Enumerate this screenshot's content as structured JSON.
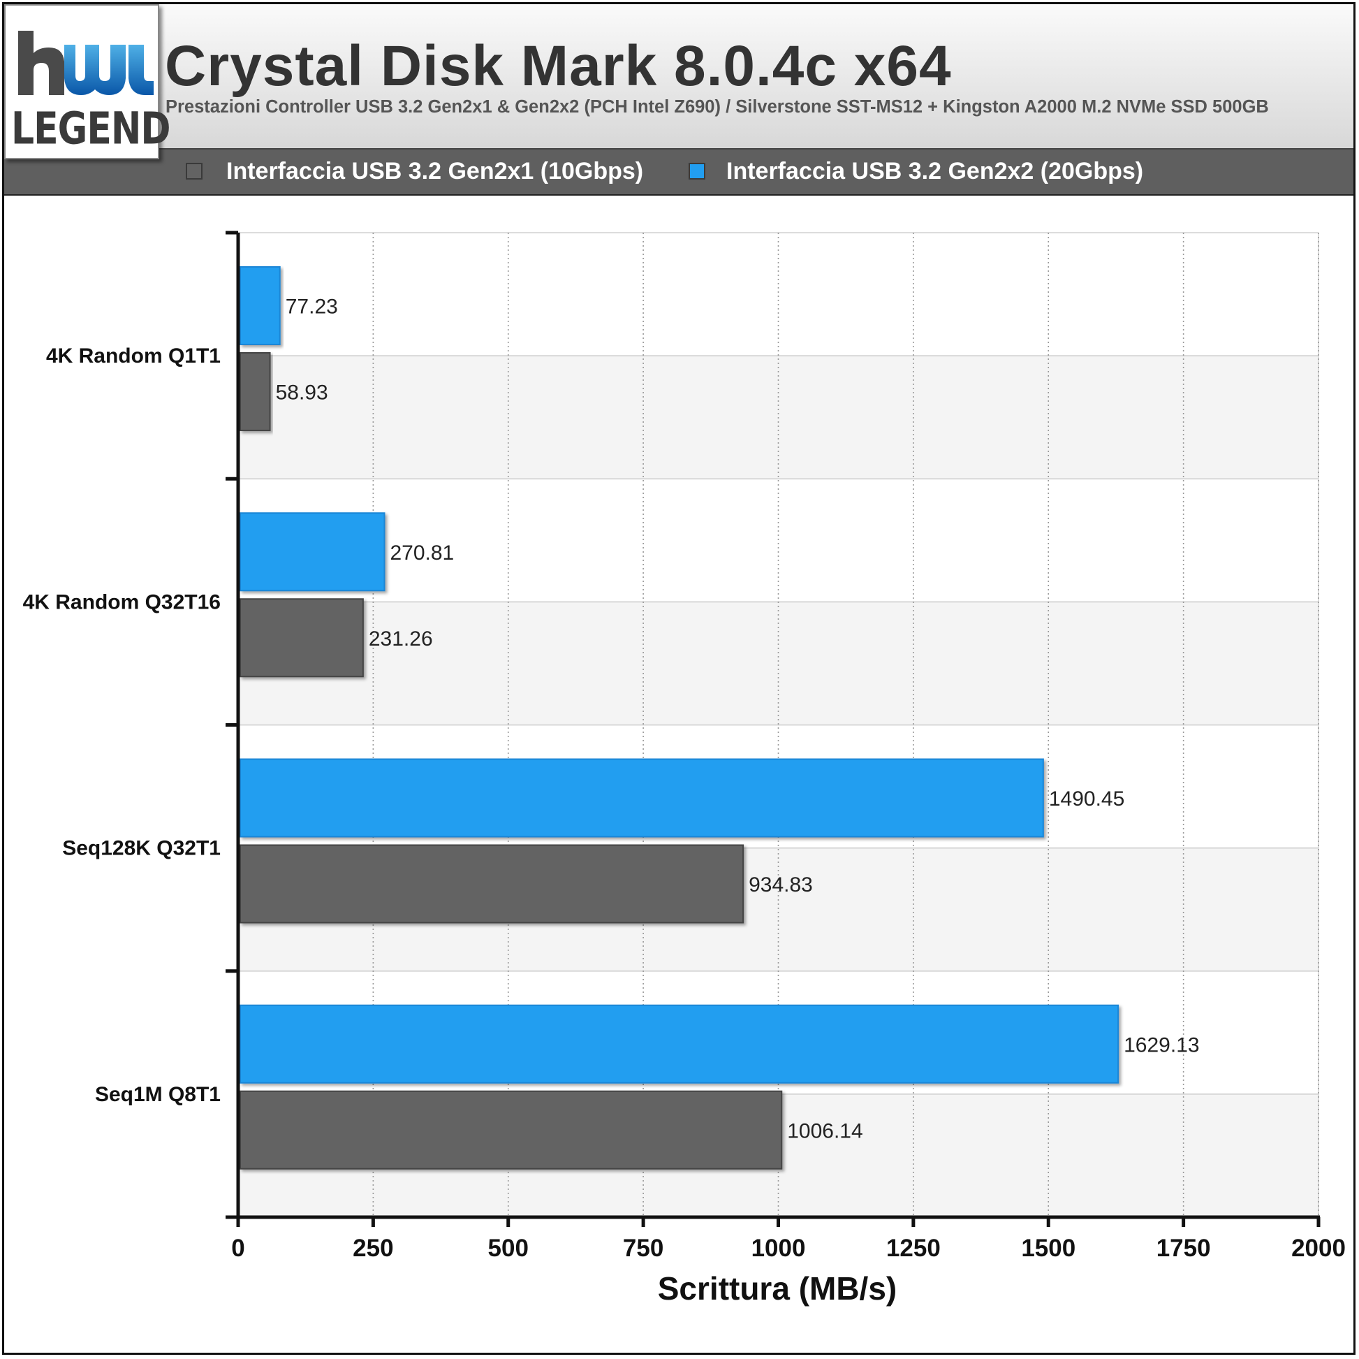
{
  "logo": {
    "mark": "hw",
    "word": "LEGEND",
    "icon": "hwlegend-logo-icon"
  },
  "header": {
    "title": "Crystal Disk Mark 8.0.4c x64",
    "subtitle": "Prestazioni Controller USB 3.2 Gen2x1 & Gen2x2 (PCH Intel Z690) / Silverstone SST-MS12 + Kingston A2000 M.2 NVMe SSD 500GB"
  },
  "colors": {
    "gen2x1": "#636363",
    "gen2x2": "#229ef0",
    "band": "#f4f4f4",
    "grid": "#999999"
  },
  "chart_data": {
    "type": "bar",
    "orientation": "horizontal",
    "categories": [
      "4K Random Q1T1",
      "4K Random Q32T16",
      "Seq128K Q32T1",
      "Seq1M Q8T1"
    ],
    "series": [
      {
        "name": "Interfaccia USB 3.2 Gen2x1 (10Gbps)",
        "color": "#636363",
        "values": [
          58.93,
          231.26,
          934.83,
          1006.14
        ]
      },
      {
        "name": "Interfaccia USB 3.2 Gen2x2 (20Gbps)",
        "color": "#229ef0",
        "values": [
          77.23,
          270.81,
          1490.45,
          1629.13
        ]
      }
    ],
    "value_labels": {
      "gen2x1": [
        "58.93",
        "231.26",
        "934.83",
        "1006.14"
      ],
      "gen2x2": [
        "77.23",
        "270.81",
        "1490.45",
        "1629.13"
      ]
    },
    "xlabel": "Scrittura (MB/s)",
    "ylabel": "",
    "xlim": [
      0,
      2000
    ],
    "xticks": [
      0,
      250,
      500,
      750,
      1000,
      1250,
      1500,
      1750,
      2000
    ],
    "grid": "vertical dotted",
    "legend": "top"
  }
}
